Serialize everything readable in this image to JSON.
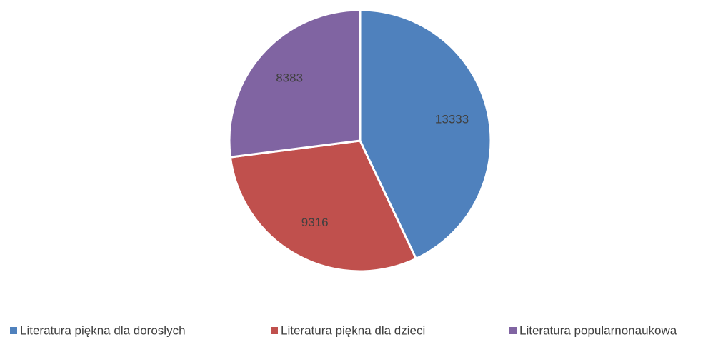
{
  "chart_data": {
    "type": "pie",
    "categories": [
      "Literatura piękna dla dorosłych",
      "Literatura piękna dla dzieci",
      "Literatura popularnonaukowa"
    ],
    "values": [
      13333,
      9316,
      8383
    ],
    "colors": [
      "#4f81bd",
      "#c0504d",
      "#8064a2"
    ],
    "legend": "bottom"
  }
}
